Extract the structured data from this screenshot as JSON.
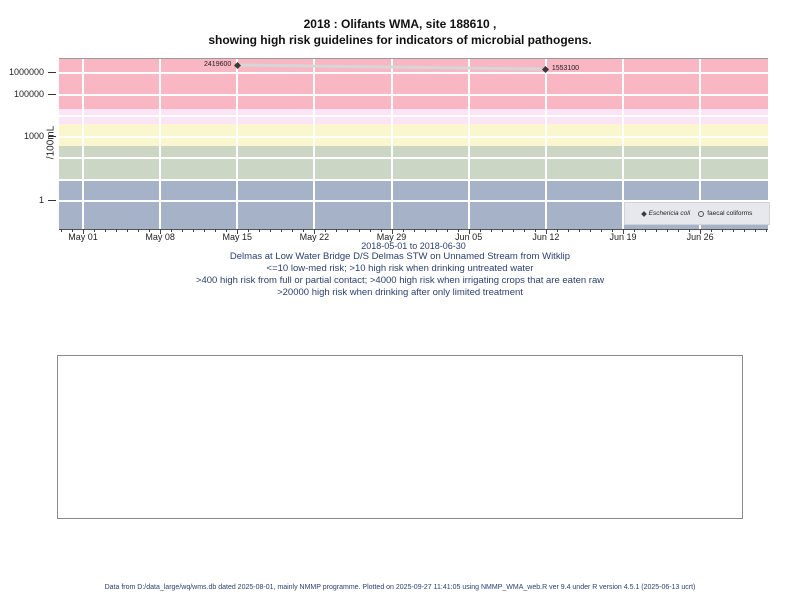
{
  "title": {
    "line1": "2018 : Olifants WMA, site 188610 ,",
    "line2": "showing high risk guidelines for indicators of microbial pathogens."
  },
  "chart_data": {
    "type": "scatter",
    "y_scale": "log10",
    "ylabel": "/100mL",
    "x_range_label": "2018-05-01 to 2018-06-30",
    "x_ticks": [
      "May 01",
      "May 08",
      "May 15",
      "May 22",
      "May 29",
      "Jun 05",
      "Jun 12",
      "Jun 19",
      "Jun 26"
    ],
    "x_tick_days": [
      0,
      7,
      14,
      21,
      28,
      35,
      42,
      49,
      56
    ],
    "y_ticks": [
      {
        "value": 1000000,
        "label": "1000000"
      },
      {
        "value": 100000,
        "label": "100000"
      },
      {
        "value": 1000,
        "label": "1000"
      },
      {
        "value": 1,
        "label": "1"
      }
    ],
    "y_grid_decades": [
      0,
      1,
      2,
      3,
      4,
      5,
      6
    ],
    "series": [
      {
        "name": "Eschericia coli",
        "marker": "filled-diamond",
        "color": "#3a3a3a",
        "points": [
          {
            "date": "May 15",
            "day": 14,
            "value": 2419600,
            "label": "2419600",
            "label_side": "left"
          },
          {
            "date": "Jun 12",
            "day": 42,
            "value": 1553100,
            "label": "1553100",
            "label_side": "right"
          }
        ]
      },
      {
        "name": "faecal coliforms",
        "marker": "open-circle",
        "style": "line",
        "color": "#d6d6d6",
        "points": [
          {
            "date": "May 15",
            "day": 14,
            "value": 2419600
          },
          {
            "date": "Jun 12",
            "day": 42,
            "value": 1553100
          }
        ]
      }
    ],
    "risk_bands": [
      {
        "label": "high risk when drinking after only limited treatment",
        "from": 20000,
        "to": null,
        "color": "#f8b7c3"
      },
      {
        "label": "high risk when irrigating crops that are eaten raw",
        "from": 4000,
        "to": 20000,
        "color": "#fbe4f5"
      },
      {
        "label": "high risk from full or partial contact",
        "from": 400,
        "to": 4000,
        "color": "#faf7cf"
      },
      {
        "label": "high risk when drinking untreated water",
        "from": 10,
        "to": 400,
        "color": "#ccd6c4"
      },
      {
        "label": "low-med risk",
        "from": null,
        "to": 10,
        "color": "#a6b2c8"
      }
    ]
  },
  "legend": {
    "items": [
      {
        "marker": "filled-diamond",
        "label": "Eschericia coli",
        "italic": true
      },
      {
        "marker": "open-circle",
        "label": "faecal coliforms",
        "italic": false
      }
    ]
  },
  "annotations": {
    "site_line": "Delmas at Low Water Bridge D/S Delmas STW on Unnamed Stream from Witklip",
    "risk_line1": "<=10 low-med risk; >10 high risk when drinking untreated water",
    "risk_line2": ">400 high risk from full or partial contact; >4000 high risk when irrigating crops that are eaten raw",
    "risk_line3": ">20000 high risk when drinking after only limited treatment"
  },
  "footer": {
    "text": "Data from D:/data_large/wq/wms.db dated 2025-08-01, mainly NMMP programme. Plotted on 2025-09-27 11:41:05 using NMMP_WMA_web.R ver 9.4 under R version 4.5.1 (2025-06-13 ucrt)"
  }
}
